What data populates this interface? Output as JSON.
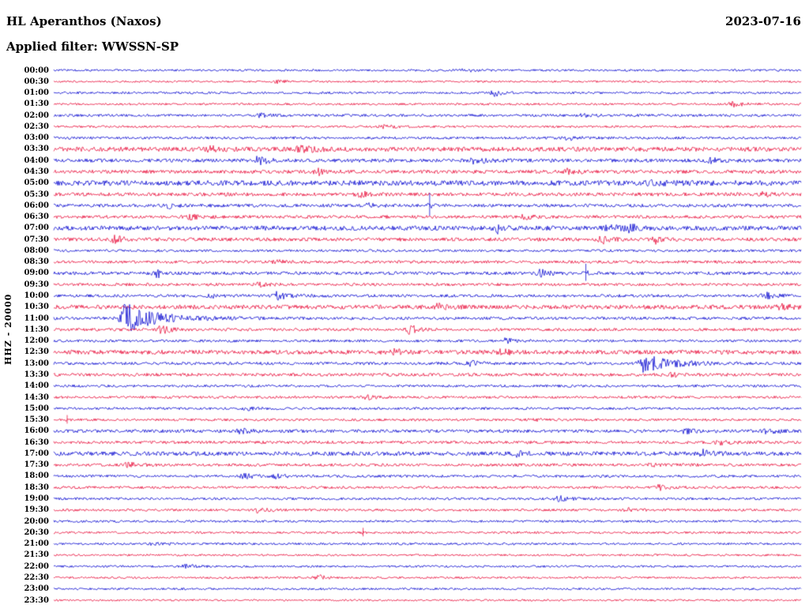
{
  "header": {
    "station": "HL Aperanthos (Naxos)",
    "date": "2023-07-16",
    "filter_label": "Applied filter: WWSSN-SP"
  },
  "y_axis_label": "HHZ - 20000",
  "colors": {
    "blue": "#0b0bd0",
    "red": "#e8103c",
    "text": "#000000",
    "background": "#ffffff"
  },
  "chart_data": {
    "type": "line",
    "subtype": "helicorder-seismogram",
    "title": "HL Aperanthos (Naxos)",
    "date": "2023-07-16",
    "filter": "WWSSN-SP",
    "channel_scale": "HHZ - 20000",
    "layout": {
      "rows": 48,
      "row_duration_minutes": 30,
      "start": "00:00",
      "end": "23:59",
      "alternating_colors": [
        "blue",
        "red"
      ],
      "grid": false,
      "legend": false
    },
    "rows": [
      {
        "label": "00:00",
        "color": "blue",
        "noise": 1.3,
        "events": [
          {
            "pos": 0.55,
            "amp": 2.2
          }
        ]
      },
      {
        "label": "00:30",
        "color": "red",
        "noise": 1.2,
        "events": [
          {
            "pos": 0.3,
            "amp": 1.8
          }
        ]
      },
      {
        "label": "01:00",
        "color": "blue",
        "noise": 1.4,
        "events": [
          {
            "pos": 0.591,
            "amp": 5,
            "decay": 0.008
          }
        ]
      },
      {
        "label": "01:30",
        "color": "red",
        "noise": 1.3,
        "events": [
          {
            "pos": 0.91,
            "amp": 3.2
          }
        ]
      },
      {
        "label": "02:00",
        "color": "blue",
        "noise": 1.6,
        "events": [
          {
            "pos": 0.275,
            "amp": 2.8
          },
          {
            "pos": 0.71,
            "amp": 2.2
          }
        ]
      },
      {
        "label": "02:30",
        "color": "red",
        "noise": 1.4,
        "events": [
          {
            "pos": 0.44,
            "amp": 2.2
          }
        ]
      },
      {
        "label": "03:00",
        "color": "blue",
        "noise": 1.6,
        "events": [
          {
            "pos": 0.69,
            "amp": 2.4
          }
        ]
      },
      {
        "label": "03:30",
        "color": "red",
        "noise": 2.8,
        "events": [
          {
            "pos": 0.21,
            "amp": 2.8
          },
          {
            "pos": 0.33,
            "amp": 4,
            "decay": 0.015
          }
        ]
      },
      {
        "label": "04:00",
        "color": "blue",
        "noise": 2.2,
        "events": [
          {
            "pos": 0.275,
            "amp": 5,
            "decay": 0.012
          },
          {
            "pos": 0.565,
            "amp": 4.5,
            "decay": 0.012
          },
          {
            "pos": 0.88,
            "amp": 2.4
          }
        ]
      },
      {
        "label": "04:30",
        "color": "red",
        "noise": 2.2,
        "events": [
          {
            "pos": 0.355,
            "amp": 3.4
          },
          {
            "pos": 0.69,
            "amp": 3.4
          }
        ]
      },
      {
        "label": "05:00",
        "color": "blue",
        "noise": 3.2,
        "events": [
          {
            "pos": 0.8,
            "amp": 2.8
          }
        ]
      },
      {
        "label": "05:30",
        "color": "red",
        "noise": 2.2,
        "events": [
          {
            "pos": 0.41,
            "amp": 3.4
          },
          {
            "pos": 0.95,
            "amp": 2.4
          }
        ]
      },
      {
        "label": "06:00",
        "color": "blue",
        "noise": 2.0,
        "events": [
          {
            "pos": 0.155,
            "amp": 2.4
          },
          {
            "pos": 0.503,
            "amp": 16,
            "spike": true
          },
          {
            "pos": 0.42,
            "amp": 2.2
          }
        ]
      },
      {
        "label": "06:30",
        "color": "red",
        "noise": 2.0,
        "events": [
          {
            "pos": 0.185,
            "amp": 2.8
          },
          {
            "pos": 0.63,
            "amp": 2.4
          }
        ]
      },
      {
        "label": "07:00",
        "color": "blue",
        "noise": 2.8,
        "events": [
          {
            "pos": 0.594,
            "amp": 5,
            "decay": 0.01
          },
          {
            "pos": 0.745,
            "amp": 4
          },
          {
            "pos": 0.77,
            "amp": 4
          }
        ]
      },
      {
        "label": "07:30",
        "color": "red",
        "noise": 2.2,
        "events": [
          {
            "pos": 0.082,
            "amp": 4.5,
            "decay": 0.01
          },
          {
            "pos": 0.735,
            "amp": 4.5,
            "decay": 0.01
          },
          {
            "pos": 0.805,
            "amp": 4.5,
            "decay": 0.01
          }
        ]
      },
      {
        "label": "08:00",
        "color": "blue",
        "noise": 1.6,
        "events": []
      },
      {
        "label": "08:30",
        "color": "red",
        "noise": 1.8,
        "events": [
          {
            "pos": 0.3,
            "amp": 2.4
          }
        ]
      },
      {
        "label": "09:00",
        "color": "blue",
        "noise": 2.0,
        "events": [
          {
            "pos": 0.14,
            "amp": 5,
            "decay": 0.008
          },
          {
            "pos": 0.652,
            "amp": 4
          },
          {
            "pos": 0.712,
            "amp": 12,
            "spike": true
          }
        ]
      },
      {
        "label": "09:30",
        "color": "red",
        "noise": 1.8,
        "events": [
          {
            "pos": 0.275,
            "amp": 2.4
          }
        ]
      },
      {
        "label": "10:00",
        "color": "blue",
        "noise": 1.8,
        "events": [
          {
            "pos": 0.21,
            "amp": 2.8
          },
          {
            "pos": 0.3,
            "amp": 5,
            "decay": 0.012
          },
          {
            "pos": 0.953,
            "amp": 3.6
          }
        ]
      },
      {
        "label": "10:30",
        "color": "red",
        "noise": 2.6,
        "events": [
          {
            "pos": 0.515,
            "amp": 3.2
          },
          {
            "pos": 0.975,
            "amp": 3.2
          }
        ]
      },
      {
        "label": "11:00",
        "color": "blue",
        "noise": 1.8,
        "events": [
          {
            "pos": 0.098,
            "amp": 13,
            "decay": 0.05
          },
          {
            "pos": 0.094,
            "amp": 8,
            "decay": 0.01
          }
        ]
      },
      {
        "label": "11:30",
        "color": "red",
        "noise": 1.8,
        "events": [
          {
            "pos": 0.145,
            "amp": 6,
            "decay": 0.01
          },
          {
            "pos": 0.478,
            "amp": 5.5,
            "decay": 0.01
          }
        ]
      },
      {
        "label": "12:00",
        "color": "blue",
        "noise": 1.6,
        "events": [
          {
            "pos": 0.605,
            "amp": 2.8
          }
        ]
      },
      {
        "label": "12:30",
        "color": "red",
        "noise": 2.6,
        "events": [
          {
            "pos": 0.455,
            "amp": 3.6
          },
          {
            "pos": 0.6,
            "amp": 2.8
          }
        ]
      },
      {
        "label": "13:00",
        "color": "blue",
        "noise": 1.8,
        "events": [
          {
            "pos": 0.56,
            "amp": 2.8
          },
          {
            "pos": 0.788,
            "amp": 11,
            "decay": 0.035
          }
        ]
      },
      {
        "label": "13:30",
        "color": "red",
        "noise": 2.0,
        "events": [
          {
            "pos": 0.83,
            "amp": 2.8
          }
        ]
      },
      {
        "label": "14:00",
        "color": "blue",
        "noise": 1.6,
        "events": []
      },
      {
        "label": "14:30",
        "color": "red",
        "noise": 1.6,
        "events": [
          {
            "pos": 0.42,
            "amp": 2.2
          }
        ]
      },
      {
        "label": "15:00",
        "color": "blue",
        "noise": 1.5,
        "events": [
          {
            "pos": 0.26,
            "amp": 2.2
          }
        ]
      },
      {
        "label": "15:30",
        "color": "red",
        "noise": 1.5,
        "events": [
          {
            "pos": 0.018,
            "amp": 6,
            "spike": true
          },
          {
            "pos": 0.64,
            "amp": 2.2
          }
        ]
      },
      {
        "label": "16:00",
        "color": "blue",
        "noise": 2.0,
        "events": [
          {
            "pos": 0.25,
            "amp": 2.8
          },
          {
            "pos": 0.845,
            "amp": 2.8
          },
          {
            "pos": 0.955,
            "amp": 3.6
          }
        ]
      },
      {
        "label": "16:30",
        "color": "red",
        "noise": 1.8,
        "events": [
          {
            "pos": 0.89,
            "amp": 3.2
          }
        ]
      },
      {
        "label": "17:00",
        "color": "blue",
        "noise": 2.6,
        "events": [
          {
            "pos": 0.62,
            "amp": 2.8
          },
          {
            "pos": 0.87,
            "amp": 3.6
          }
        ]
      },
      {
        "label": "17:30",
        "color": "red",
        "noise": 1.8,
        "events": [
          {
            "pos": 0.1,
            "amp": 2.8
          },
          {
            "pos": 0.8,
            "amp": 2.2
          }
        ]
      },
      {
        "label": "18:00",
        "color": "blue",
        "noise": 1.6,
        "events": [
          {
            "pos": 0.255,
            "amp": 3.2
          },
          {
            "pos": 0.3,
            "amp": 2.8
          }
        ]
      },
      {
        "label": "18:30",
        "color": "red",
        "noise": 1.6,
        "events": [
          {
            "pos": 0.81,
            "amp": 3.2
          }
        ]
      },
      {
        "label": "19:00",
        "color": "blue",
        "noise": 1.5,
        "events": [
          {
            "pos": 0.677,
            "amp": 3.2
          }
        ]
      },
      {
        "label": "19:30",
        "color": "red",
        "noise": 1.5,
        "events": [
          {
            "pos": 0.275,
            "amp": 3.2
          },
          {
            "pos": 0.77,
            "amp": 2.2
          }
        ]
      },
      {
        "label": "20:00",
        "color": "blue",
        "noise": 1.4,
        "events": []
      },
      {
        "label": "20:30",
        "color": "red",
        "noise": 1.4,
        "events": [
          {
            "pos": 0.414,
            "amp": 6,
            "spike": true
          }
        ]
      },
      {
        "label": "21:00",
        "color": "blue",
        "noise": 1.4,
        "events": [
          {
            "pos": 0.135,
            "amp": 2.2
          }
        ]
      },
      {
        "label": "21:30",
        "color": "red",
        "noise": 1.3,
        "events": []
      },
      {
        "label": "22:00",
        "color": "blue",
        "noise": 1.3,
        "events": [
          {
            "pos": 0.178,
            "amp": 2.8
          }
        ]
      },
      {
        "label": "22:30",
        "color": "red",
        "noise": 1.3,
        "events": [
          {
            "pos": 0.356,
            "amp": 3.6,
            "decay": 0.008
          }
        ]
      },
      {
        "label": "23:00",
        "color": "blue",
        "noise": 1.3,
        "events": []
      },
      {
        "label": "23:30",
        "color": "red",
        "noise": 1.2,
        "events": []
      }
    ]
  }
}
